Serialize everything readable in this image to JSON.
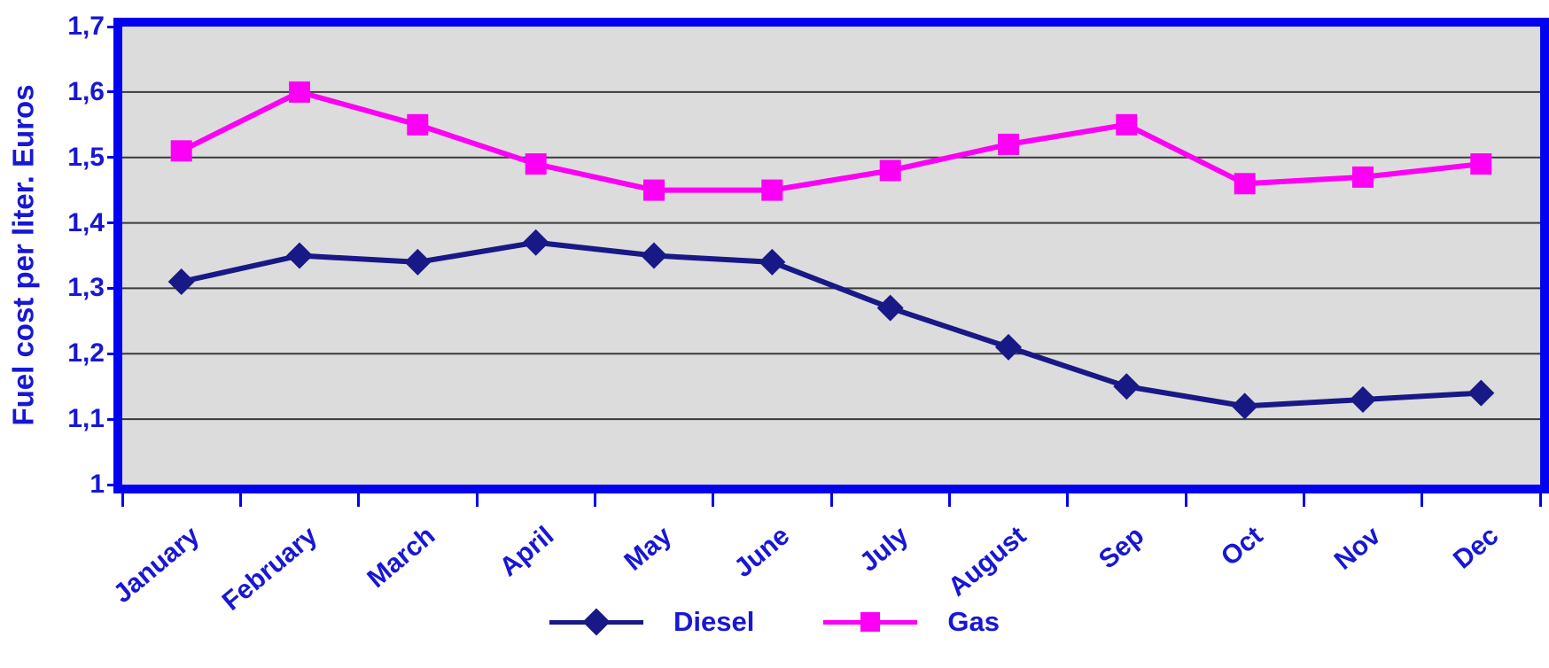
{
  "chart_data": {
    "type": "line",
    "title": "",
    "ylabel": "Fuel cost per liter. Euros",
    "xlabel": "",
    "categories": [
      "January",
      "February",
      "March",
      "April",
      "May",
      "June",
      "July",
      "August",
      "Sep",
      "Oct",
      "Nov",
      "Dec"
    ],
    "series": [
      {
        "id": "diesel",
        "name": "Diesel",
        "marker": "diamond",
        "color": "#181887",
        "values": [
          1.31,
          1.35,
          1.34,
          1.37,
          1.35,
          1.34,
          1.27,
          1.21,
          1.15,
          1.12,
          1.13,
          1.14
        ]
      },
      {
        "id": "gas",
        "name": "Gas",
        "marker": "square",
        "color": "#fb00f5",
        "values": [
          1.51,
          1.6,
          1.55,
          1.49,
          1.45,
          1.45,
          1.48,
          1.52,
          1.55,
          1.46,
          1.47,
          1.49
        ]
      }
    ],
    "ylim": [
      1.0,
      1.7
    ],
    "ytick_step": 0.1,
    "ytick_labels": [
      "1",
      "1,1",
      "1,2",
      "1,3",
      "1,4",
      "1,5",
      "1,6",
      "1,7"
    ],
    "gridlines_at": [
      1.1,
      1.2,
      1.3,
      1.4,
      1.5,
      1.6
    ],
    "grid": "horizontal",
    "legend_position": "bottom",
    "colors": {
      "axis_text": "#1717d4",
      "frame_border": "#0202f0",
      "plot_background": "#dcdcdc",
      "gridline": "#3a3a3a",
      "page_background": "#ffffff"
    }
  }
}
